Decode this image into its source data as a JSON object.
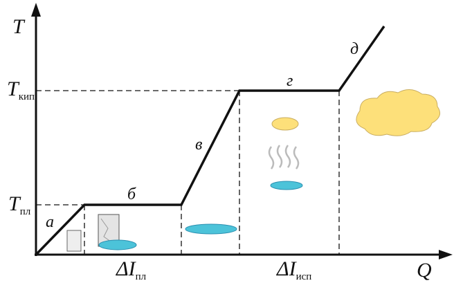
{
  "axes": {
    "y": "T",
    "x": "Q"
  },
  "levels": [
    {
      "main": "T",
      "sub": "кип"
    },
    {
      "main": "T",
      "sub": "пл"
    }
  ],
  "segments": [
    "а",
    "б",
    "в",
    "г",
    "д"
  ],
  "intervals": [
    {
      "main": "ΔI",
      "sub": "пл"
    },
    {
      "main": "ΔI",
      "sub": "исп"
    }
  ]
}
